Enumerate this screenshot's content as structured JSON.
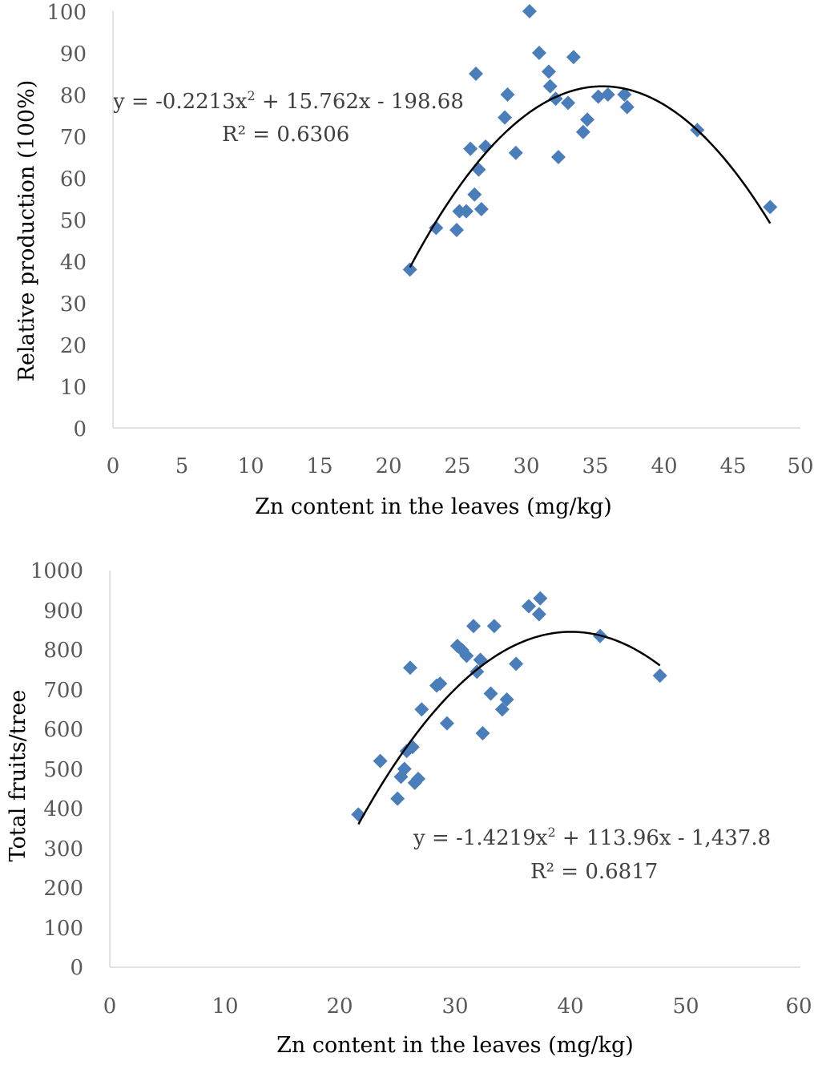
{
  "colors": {
    "marker": "#4a7ebb",
    "trend": "#000000",
    "axis": "#d9d9d9",
    "tick_text": "#595959",
    "equation_text": "#404040"
  },
  "chart_data": [
    {
      "type": "scatter",
      "title": "",
      "xlabel": "Zn content in the leaves (mg/kg)",
      "ylabel": "Relative production  (100%)",
      "xlim": [
        0,
        50
      ],
      "ylim": [
        0,
        100
      ],
      "xticks": [
        "0",
        "5",
        "10",
        "15",
        "20",
        "25",
        "30",
        "35",
        "40",
        "45",
        "50"
      ],
      "yticks": [
        "0",
        "10",
        "20",
        "30",
        "40",
        "50",
        "60",
        "70",
        "80",
        "90",
        "100"
      ],
      "marker": "diamond",
      "trendline": {
        "type": "polynomial",
        "order": 2,
        "coefficients": [
          -0.2213,
          15.762,
          -198.68
        ],
        "x_range": [
          21.6,
          47.8
        ],
        "equation": {
          "prefix": "y = -0.2213x",
          "superscript": "2",
          "suffix": " + 15.762x - 198.68"
        },
        "r_squared": "R² = 0.6306"
      },
      "series": [
        {
          "name": "Relative production",
          "points": [
            [
              21.6,
              38
            ],
            [
              23.5,
              48
            ],
            [
              25.0,
              47.5
            ],
            [
              25.2,
              52
            ],
            [
              25.7,
              52
            ],
            [
              26.0,
              67
            ],
            [
              26.3,
              56
            ],
            [
              26.4,
              85
            ],
            [
              26.6,
              62
            ],
            [
              26.8,
              52.5
            ],
            [
              27.1,
              67.5
            ],
            [
              28.5,
              74.5
            ],
            [
              28.7,
              80
            ],
            [
              29.3,
              66
            ],
            [
              30.3,
              100
            ],
            [
              31.0,
              90
            ],
            [
              31.7,
              85.5
            ],
            [
              31.8,
              82
            ],
            [
              32.2,
              79
            ],
            [
              32.4,
              65
            ],
            [
              33.1,
              78
            ],
            [
              33.5,
              89
            ],
            [
              34.2,
              71
            ],
            [
              34.5,
              74
            ],
            [
              35.3,
              79.5
            ],
            [
              36.0,
              80
            ],
            [
              37.2,
              80
            ],
            [
              37.4,
              77
            ],
            [
              42.5,
              71.5
            ],
            [
              47.8,
              53
            ]
          ]
        }
      ]
    },
    {
      "type": "scatter",
      "title": "",
      "xlabel": "Zn content in the leaves (mg/kg)",
      "ylabel": "Total fruits/tree",
      "xlim": [
        0,
        60
      ],
      "ylim": [
        0,
        1000
      ],
      "xticks": [
        "0",
        "10",
        "20",
        "30",
        "40",
        "50",
        "60"
      ],
      "yticks": [
        "0",
        "100",
        "200",
        "300",
        "400",
        "500",
        "600",
        "700",
        "800",
        "900",
        "1000"
      ],
      "marker": "diamond",
      "trendline": {
        "type": "polynomial",
        "order": 2,
        "coefficients": [
          -1.4219,
          113.96,
          -1437.8
        ],
        "x_range": [
          21.6,
          47.8
        ],
        "equation": {
          "prefix": "y = -1.4219x",
          "superscript": "2",
          "suffix": " + 113.96x - 1,437.8"
        },
        "r_squared": "R² = 0.6817"
      },
      "series": [
        {
          "name": "Total fruits/tree",
          "points": [
            [
              21.6,
              385
            ],
            [
              23.5,
              520
            ],
            [
              25.0,
              425
            ],
            [
              25.3,
              480
            ],
            [
              25.6,
              500
            ],
            [
              25.8,
              545
            ],
            [
              26.1,
              755
            ],
            [
              26.3,
              555
            ],
            [
              26.5,
              465
            ],
            [
              26.8,
              475
            ],
            [
              27.1,
              650
            ],
            [
              28.4,
              710
            ],
            [
              28.7,
              715
            ],
            [
              29.3,
              615
            ],
            [
              30.2,
              810
            ],
            [
              30.6,
              800
            ],
            [
              31.0,
              785
            ],
            [
              31.6,
              860
            ],
            [
              31.9,
              745
            ],
            [
              32.2,
              775
            ],
            [
              32.4,
              590
            ],
            [
              33.1,
              690
            ],
            [
              33.4,
              860
            ],
            [
              34.1,
              650
            ],
            [
              34.5,
              675
            ],
            [
              35.3,
              765
            ],
            [
              36.4,
              910
            ],
            [
              37.3,
              890
            ],
            [
              37.4,
              930
            ],
            [
              42.6,
              835
            ],
            [
              47.8,
              735
            ]
          ]
        }
      ]
    }
  ]
}
